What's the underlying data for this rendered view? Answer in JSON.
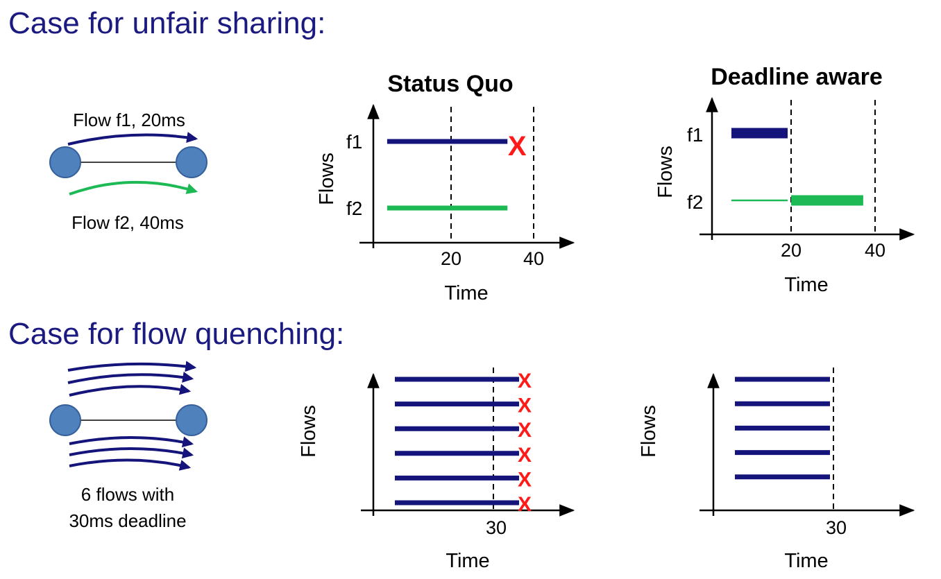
{
  "section1": {
    "heading": "Case for unfair sharing:",
    "network": {
      "flow1_label": "Flow f1, 20ms",
      "flow2_label": "Flow f2, 40ms",
      "colors": {
        "node": "#4f81bd",
        "flow1": "#14147a",
        "flow2": "#1db954"
      }
    },
    "chart_status_quo": {
      "title": "Status Quo",
      "ylabel": "Flows",
      "xlabel": "Time",
      "x_ticks": [
        "20",
        "40"
      ],
      "deadlines": [
        20,
        40
      ],
      "flows": [
        {
          "label": "f1",
          "start": 2,
          "end": 35,
          "missed": true,
          "x_mark": "X"
        },
        {
          "label": "f2",
          "start": 2,
          "end": 35,
          "missed": false
        }
      ]
    },
    "chart_deadline_aware": {
      "title": "Deadline aware",
      "ylabel": "Flows",
      "xlabel": "Time",
      "x_ticks": [
        "20",
        "40"
      ],
      "deadlines": [
        20,
        40
      ],
      "flows": [
        {
          "label": "f1",
          "segments": [
            {
              "start": 2,
              "end": 20,
              "weight": "thick"
            }
          ]
        },
        {
          "label": "f2",
          "segments": [
            {
              "start": 2,
              "end": 20,
              "weight": "thin"
            },
            {
              "start": 20,
              "end": 38,
              "weight": "thick"
            }
          ]
        }
      ]
    }
  },
  "section2": {
    "heading": "Case for flow quenching:",
    "network": {
      "caption_line1": "6 flows with",
      "caption_line2": "30ms deadline"
    },
    "chart_status_quo": {
      "ylabel": "Flows",
      "xlabel": "Time",
      "x_tick": "30",
      "deadline": 30,
      "flow_count": 6,
      "flow_end": 34,
      "x_mark": "X"
    },
    "chart_deadline_aware": {
      "ylabel": "Flows",
      "xlabel": "Time",
      "x_tick": "30",
      "deadline": 30,
      "flow_count": 5,
      "flow_end": 29
    }
  }
}
